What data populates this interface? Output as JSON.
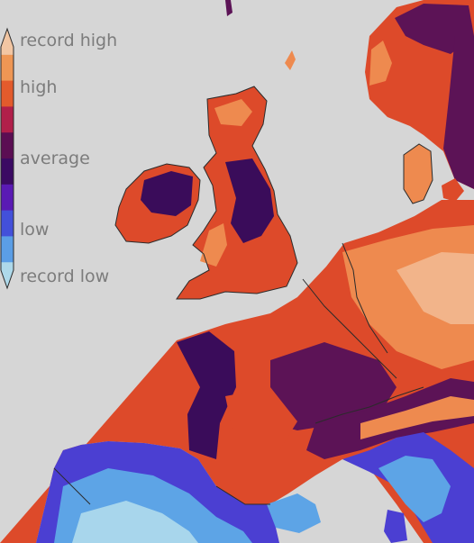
{
  "legend": {
    "labels": {
      "record_high": "record high",
      "high": "high",
      "average": "average",
      "low": "low",
      "record_low": "record low"
    },
    "bins": [
      {
        "key": "record_high_cap",
        "color": "#f2c6a3"
      },
      {
        "key": "very_high",
        "color": "#ee9654"
      },
      {
        "key": "high",
        "color": "#e35b2c"
      },
      {
        "key": "warm",
        "color": "#b11f4a"
      },
      {
        "key": "above_average",
        "color": "#5b0e53"
      },
      {
        "key": "average",
        "color": "#3b0a63"
      },
      {
        "key": "below_average",
        "color": "#5a1ab4"
      },
      {
        "key": "cool",
        "color": "#4350da"
      },
      {
        "key": "low",
        "color": "#5b9ee6"
      },
      {
        "key": "record_low_cap",
        "color": "#aed9ea"
      }
    ]
  },
  "map_colors": {
    "background": "#d6d6d6",
    "land_warm": "#dd4a2a",
    "land_hot": "#ee8a4f",
    "land_hotter": "#f2b48a",
    "land_average": "#3a0c5a",
    "land_dark": "#5c1356",
    "land_cool": "#4b3fd2",
    "land_cold": "#5da4e6",
    "land_coldest": "#a8d6ec",
    "border": "#2b2b2b"
  }
}
